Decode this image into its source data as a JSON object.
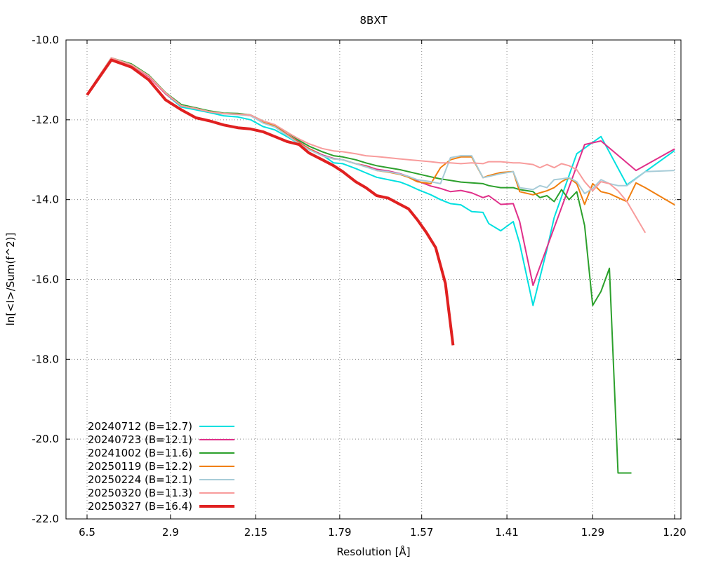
{
  "chart_data": {
    "type": "line",
    "title": "8BXT",
    "xlabel": "Resolution [Å]",
    "ylabel": "ln[<I>/Sum(f^2)]",
    "x_scale": "1/d^2",
    "ylim": [
      -22.0,
      -10.0
    ],
    "x_ticks": [
      {
        "label": "6.5",
        "value": 6.5
      },
      {
        "label": "2.9",
        "value": 2.9
      },
      {
        "label": "2.15",
        "value": 2.15
      },
      {
        "label": "1.79",
        "value": 1.79
      },
      {
        "label": "1.57",
        "value": 1.57
      },
      {
        "label": "1.41",
        "value": 1.41
      },
      {
        "label": "1.29",
        "value": 1.29
      },
      {
        "label": "1.20",
        "value": 1.2
      }
    ],
    "y_ticks": [
      {
        "label": "-10.0",
        "value": -10.0
      },
      {
        "label": "-12.0",
        "value": -12.0
      },
      {
        "label": "-14.0",
        "value": -14.0
      },
      {
        "label": "-16.0",
        "value": -16.0
      },
      {
        "label": "-18.0",
        "value": -18.0
      },
      {
        "label": "-20.0",
        "value": -20.0
      },
      {
        "label": "-22.0",
        "value": -22.0
      }
    ],
    "grid": true,
    "legend_position": "bottom-left",
    "series": [
      {
        "name": "20240712 (B=12.7)",
        "color": "#00e0e0",
        "width": 2,
        "x": [
          6.5,
          4.41,
          3.67,
          3.26,
          2.97,
          2.76,
          2.6,
          2.47,
          2.36,
          2.26,
          2.18,
          2.11,
          2.05,
          1.99,
          1.94,
          1.9,
          1.85,
          1.81,
          1.78,
          1.74,
          1.71,
          1.68,
          1.65,
          1.62,
          1.6,
          1.58,
          1.55,
          1.53,
          1.51,
          1.49,
          1.47,
          1.45,
          1.44,
          1.42,
          1.4,
          1.39,
          1.37,
          1.36,
          1.35,
          1.34,
          1.31,
          1.28,
          1.25,
          1.2
        ],
        "y": [
          -11.36,
          -10.45,
          -10.62,
          -10.9,
          -11.35,
          -11.68,
          -11.75,
          -11.82,
          -11.9,
          -11.93,
          -12.0,
          -12.17,
          -12.25,
          -12.43,
          -12.6,
          -12.74,
          -12.88,
          -13.08,
          -13.1,
          -13.22,
          -13.33,
          -13.44,
          -13.5,
          -13.56,
          -13.64,
          -13.74,
          -13.88,
          -14.0,
          -14.1,
          -14.13,
          -14.3,
          -14.32,
          -14.6,
          -14.78,
          -14.55,
          -15.1,
          -16.65,
          -15.95,
          -15.25,
          -14.45,
          -12.85,
          -12.42,
          -13.63,
          -12.77
        ]
      },
      {
        "name": "20240723 (B=12.1)",
        "color": "#e0308a",
        "width": 2,
        "x": [
          6.5,
          4.41,
          3.67,
          3.26,
          2.97,
          2.76,
          2.6,
          2.47,
          2.36,
          2.26,
          2.18,
          2.11,
          2.05,
          1.99,
          1.94,
          1.9,
          1.85,
          1.81,
          1.78,
          1.74,
          1.71,
          1.68,
          1.65,
          1.62,
          1.6,
          1.58,
          1.55,
          1.53,
          1.51,
          1.49,
          1.47,
          1.45,
          1.44,
          1.42,
          1.4,
          1.39,
          1.37,
          1.3,
          1.28,
          1.24,
          1.2
        ],
        "y": [
          -11.36,
          -10.45,
          -10.62,
          -10.92,
          -11.35,
          -11.65,
          -11.7,
          -11.8,
          -11.84,
          -11.85,
          -11.88,
          -12.05,
          -12.15,
          -12.37,
          -12.56,
          -12.72,
          -12.88,
          -12.97,
          -13.0,
          -13.1,
          -13.15,
          -13.24,
          -13.28,
          -13.35,
          -13.42,
          -13.53,
          -13.66,
          -13.72,
          -13.8,
          -13.77,
          -13.83,
          -13.95,
          -13.9,
          -14.12,
          -14.1,
          -14.55,
          -16.15,
          -12.62,
          -12.53,
          -13.27,
          -12.73
        ]
      },
      {
        "name": "20241002 (B=11.6)",
        "color": "#2ca02c",
        "width": 2,
        "x": [
          6.5,
          4.41,
          3.67,
          3.26,
          2.97,
          2.76,
          2.6,
          2.47,
          2.36,
          2.26,
          2.18,
          2.11,
          2.05,
          1.99,
          1.94,
          1.9,
          1.85,
          1.81,
          1.78,
          1.74,
          1.71,
          1.68,
          1.65,
          1.62,
          1.6,
          1.58,
          1.55,
          1.53,
          1.51,
          1.49,
          1.47,
          1.45,
          1.44,
          1.42,
          1.4,
          1.39,
          1.37,
          1.36,
          1.35,
          1.34,
          1.33,
          1.32,
          1.31,
          1.3,
          1.29,
          1.28,
          1.27,
          1.26,
          1.25,
          1.245
        ],
        "y": [
          -11.36,
          -10.45,
          -10.6,
          -10.88,
          -11.32,
          -11.62,
          -11.7,
          -11.78,
          -11.83,
          -11.84,
          -11.88,
          -12.03,
          -12.13,
          -12.32,
          -12.52,
          -12.66,
          -12.8,
          -12.9,
          -12.93,
          -13.0,
          -13.08,
          -13.15,
          -13.2,
          -13.25,
          -13.3,
          -13.35,
          -13.43,
          -13.48,
          -13.52,
          -13.56,
          -13.58,
          -13.6,
          -13.65,
          -13.7,
          -13.7,
          -13.75,
          -13.8,
          -13.95,
          -13.9,
          -14.05,
          -13.75,
          -14.0,
          -13.8,
          -14.65,
          -16.65,
          -16.3,
          -15.72,
          -20.85,
          -20.85,
          -20.85
        ]
      },
      {
        "name": "20250119 (B=12.2)",
        "color": "#f07f10",
        "width": 2,
        "x": [
          6.5,
          4.41,
          3.67,
          3.26,
          2.97,
          2.76,
          2.6,
          2.47,
          2.36,
          2.26,
          2.18,
          2.11,
          2.05,
          1.99,
          1.94,
          1.9,
          1.85,
          1.81,
          1.78,
          1.74,
          1.71,
          1.68,
          1.65,
          1.62,
          1.6,
          1.58,
          1.55,
          1.53,
          1.51,
          1.49,
          1.47,
          1.45,
          1.44,
          1.42,
          1.4,
          1.39,
          1.37,
          1.36,
          1.35,
          1.34,
          1.33,
          1.32,
          1.31,
          1.3,
          1.29,
          1.28,
          1.27,
          1.26,
          1.25,
          1.24,
          1.23,
          1.2
        ],
        "y": [
          -11.36,
          -10.45,
          -10.62,
          -10.9,
          -11.33,
          -11.65,
          -11.72,
          -11.8,
          -11.85,
          -11.86,
          -11.9,
          -12.06,
          -12.16,
          -12.38,
          -12.58,
          -12.73,
          -12.9,
          -12.98,
          -13.0,
          -13.1,
          -13.17,
          -13.27,
          -13.31,
          -13.37,
          -13.44,
          -13.55,
          -13.6,
          -13.2,
          -13.0,
          -12.93,
          -12.93,
          -13.45,
          -13.4,
          -13.32,
          -13.3,
          -13.8,
          -13.88,
          -13.83,
          -13.78,
          -13.7,
          -13.55,
          -13.45,
          -13.6,
          -14.12,
          -13.6,
          -13.8,
          -13.85,
          -13.95,
          -14.05,
          -13.58,
          -13.7,
          -14.13
        ]
      },
      {
        "name": "20250224 (B=12.1)",
        "color": "#a8ccd8",
        "width": 2,
        "x": [
          6.5,
          4.41,
          3.67,
          3.26,
          2.97,
          2.76,
          2.6,
          2.47,
          2.36,
          2.26,
          2.18,
          2.11,
          2.05,
          1.99,
          1.94,
          1.9,
          1.85,
          1.81,
          1.78,
          1.74,
          1.71,
          1.68,
          1.65,
          1.62,
          1.6,
          1.58,
          1.55,
          1.53,
          1.51,
          1.49,
          1.47,
          1.45,
          1.44,
          1.42,
          1.4,
          1.39,
          1.37,
          1.36,
          1.35,
          1.34,
          1.33,
          1.32,
          1.31,
          1.3,
          1.29,
          1.28,
          1.27,
          1.26,
          1.25,
          1.23,
          1.2
        ],
        "y": [
          -11.36,
          -10.45,
          -10.62,
          -10.9,
          -11.33,
          -11.65,
          -11.72,
          -11.8,
          -11.85,
          -11.87,
          -11.9,
          -12.08,
          -12.18,
          -12.4,
          -12.6,
          -12.75,
          -12.9,
          -12.98,
          -13.0,
          -13.1,
          -13.18,
          -13.27,
          -13.3,
          -13.36,
          -13.42,
          -13.5,
          -13.55,
          -13.6,
          -12.95,
          -12.9,
          -12.9,
          -13.45,
          -13.42,
          -13.35,
          -13.3,
          -13.7,
          -13.75,
          -13.65,
          -13.7,
          -13.5,
          -13.48,
          -13.45,
          -13.55,
          -13.85,
          -13.72,
          -13.5,
          -13.6,
          -13.65,
          -13.65,
          -13.3,
          -13.27
        ]
      },
      {
        "name": "20250320 (B=11.3)",
        "color": "#f89c9c",
        "width": 2,
        "x": [
          6.5,
          4.41,
          3.67,
          3.26,
          2.97,
          2.76,
          2.6,
          2.47,
          2.36,
          2.26,
          2.18,
          2.11,
          2.05,
          1.99,
          1.94,
          1.9,
          1.85,
          1.81,
          1.78,
          1.74,
          1.71,
          1.68,
          1.65,
          1.62,
          1.6,
          1.58,
          1.55,
          1.53,
          1.51,
          1.49,
          1.47,
          1.45,
          1.44,
          1.42,
          1.4,
          1.39,
          1.37,
          1.36,
          1.35,
          1.34,
          1.33,
          1.32,
          1.31,
          1.3,
          1.29,
          1.28,
          1.27,
          1.26,
          1.25,
          1.23
        ],
        "y": [
          -11.36,
          -10.45,
          -10.62,
          -10.9,
          -11.33,
          -11.65,
          -11.72,
          -11.8,
          -11.84,
          -11.86,
          -11.88,
          -12.03,
          -12.12,
          -12.32,
          -12.48,
          -12.6,
          -12.72,
          -12.78,
          -12.8,
          -12.85,
          -12.9,
          -12.92,
          -12.95,
          -12.98,
          -13.0,
          -13.02,
          -13.05,
          -13.08,
          -13.08,
          -13.1,
          -13.08,
          -13.1,
          -13.05,
          -13.05,
          -13.08,
          -13.08,
          -13.12,
          -13.2,
          -13.12,
          -13.2,
          -13.1,
          -13.15,
          -13.25,
          -13.55,
          -13.78,
          -13.55,
          -13.6,
          -13.78,
          -14.05,
          -14.83
        ]
      },
      {
        "name": "20250327 (B=16.4)",
        "color": "#e02020",
        "width": 4,
        "x": [
          6.5,
          4.41,
          3.67,
          3.26,
          2.97,
          2.76,
          2.6,
          2.47,
          2.36,
          2.26,
          2.18,
          2.11,
          2.05,
          1.99,
          1.94,
          1.9,
          1.85,
          1.81,
          1.78,
          1.74,
          1.71,
          1.68,
          1.65,
          1.62,
          1.6,
          1.58,
          1.56,
          1.54,
          1.52,
          1.505
        ],
        "y": [
          -11.38,
          -10.5,
          -10.68,
          -11.0,
          -11.5,
          -11.75,
          -11.95,
          -12.03,
          -12.13,
          -12.2,
          -12.23,
          -12.3,
          -12.42,
          -12.55,
          -12.62,
          -12.83,
          -13.0,
          -13.15,
          -13.3,
          -13.55,
          -13.7,
          -13.9,
          -13.96,
          -14.12,
          -14.23,
          -14.5,
          -14.82,
          -15.2,
          -16.1,
          -17.65
        ]
      }
    ]
  }
}
